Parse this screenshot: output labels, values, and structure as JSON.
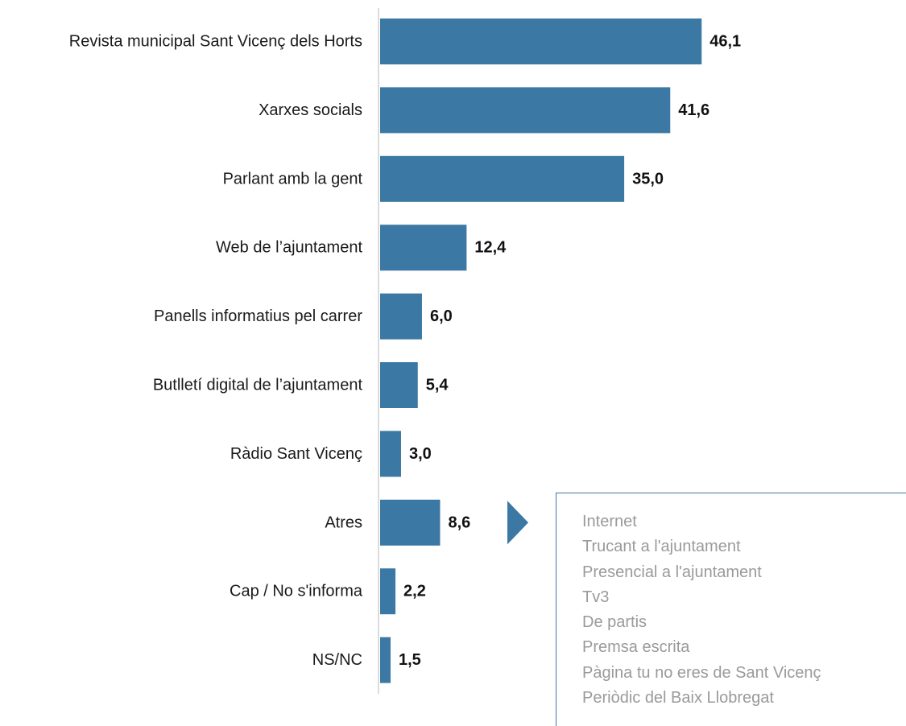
{
  "chart_data": {
    "type": "bar",
    "orientation": "horizontal",
    "categories": [
      "Revista municipal Sant Vicenç dels Horts",
      "Xarxes socials",
      "Parlant amb la gent",
      "Web de l’ajuntament",
      "Panells informatius pel carrer",
      "Butlletí digital de l’ajuntament",
      "Ràdio Sant Vicenç",
      "Atres",
      "Cap / No s'informa",
      "NS/NC"
    ],
    "values": [
      46.1,
      41.6,
      35.0,
      12.4,
      6.0,
      5.4,
      3.0,
      8.6,
      2.2,
      1.5
    ],
    "value_labels": [
      "46,1",
      "41,6",
      "35,0",
      "12,4",
      "6,0",
      "5,4",
      "3,0",
      "8,6",
      "2,2",
      "1,5"
    ],
    "xlim": [
      0,
      50
    ],
    "grid": false,
    "bar_color": "#3b78a3",
    "axis_color": "#d0d0d0"
  },
  "others_note": {
    "arrow_color": "#3b78a3",
    "items": [
      "Internet",
      "Trucant a l'ajuntament",
      "Presencial a l'ajuntament",
      "Tv3",
      "De partis",
      "Premsa escrita",
      "Pàgina tu no eres de Sant Vicenç",
      "Periòdic del Baix Llobregat"
    ]
  }
}
